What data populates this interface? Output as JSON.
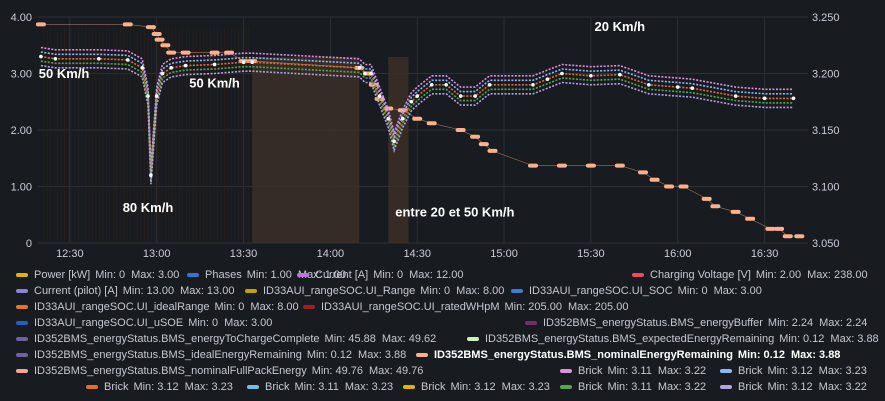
{
  "chart_data": {
    "type": "line",
    "x_ticks": [
      "12:30",
      "13:00",
      "13:30",
      "14:00",
      "14:30",
      "15:00",
      "15:30",
      "16:00",
      "16:30"
    ],
    "y_left_ticks": [
      "4.00",
      "3.00",
      "2.00",
      "1.00",
      "0"
    ],
    "y_right_ticks": [
      "3.250",
      "3.200",
      "3.150",
      "3.100",
      "3.050"
    ],
    "y_left_range": [
      0,
      4
    ],
    "y_right_range": [
      3.05,
      3.25
    ],
    "grid": true,
    "legend_position": "bottom",
    "annotations": [
      {
        "text": "50 Km/h",
        "time": "12:28",
        "value": 2.92
      },
      {
        "text": "50 Km/h",
        "time": "13:20",
        "value": 2.75
      },
      {
        "text": "80 Km/h",
        "time": "12:57",
        "value": 0.55
      },
      {
        "text": "entre 20 et 50 Km/h",
        "time": "14:43",
        "value": 0.47
      },
      {
        "text": "20 Km/h",
        "time": "15:40",
        "value": 3.75
      }
    ],
    "series": [
      {
        "name": "ID352BMS_energyStatus.BMS_nominalEnergyRemaining",
        "axis": "left",
        "color": "#fdb08b",
        "points": [
          [
            "12:20",
            3.87
          ],
          [
            "12:50",
            3.87
          ],
          [
            "12:58",
            3.82
          ],
          [
            "13:00",
            3.7
          ],
          [
            "13:01",
            3.6
          ],
          [
            "13:03",
            3.5
          ],
          [
            "13:05",
            3.37
          ],
          [
            "13:10",
            3.37
          ],
          [
            "13:20",
            3.37
          ],
          [
            "13:25",
            3.37
          ],
          [
            "13:30",
            3.22
          ],
          [
            "13:33",
            3.22
          ],
          [
            "14:10",
            3.1
          ],
          [
            "14:13",
            3.0
          ],
          [
            "14:15",
            2.8
          ],
          [
            "14:17",
            2.55
          ],
          [
            "14:20",
            2.38
          ],
          [
            "14:25",
            2.35
          ],
          [
            "14:30",
            2.2
          ],
          [
            "14:35",
            2.12
          ],
          [
            "14:45",
            2.0
          ],
          [
            "14:50",
            1.88
          ],
          [
            "14:53",
            1.75
          ],
          [
            "14:56",
            1.63
          ],
          [
            "15:10",
            1.37
          ],
          [
            "15:20",
            1.37
          ],
          [
            "15:30",
            1.37
          ],
          [
            "15:40",
            1.37
          ],
          [
            "15:48",
            1.25
          ],
          [
            "15:52",
            1.12
          ],
          [
            "15:57",
            1.0
          ],
          [
            "16:02",
            1.0
          ],
          [
            "16:10",
            0.78
          ],
          [
            "16:13",
            0.65
          ],
          [
            "16:20",
            0.55
          ],
          [
            "16:25",
            0.43
          ],
          [
            "16:32",
            0.25
          ],
          [
            "16:35",
            0.25
          ],
          [
            "16:38",
            0.12
          ],
          [
            "16:42",
            0.12
          ]
        ]
      },
      {
        "name": "Brick",
        "axis": "right",
        "color": "#f2495c",
        "points": [
          [
            "12:20",
            3.215
          ],
          [
            "12:25",
            3.213
          ],
          [
            "12:40",
            3.213
          ],
          [
            "12:50",
            3.212
          ],
          [
            "12:55",
            3.205
          ],
          [
            "12:57",
            3.18
          ],
          [
            "12:58",
            3.11
          ],
          [
            "13:00",
            3.18
          ],
          [
            "13:02",
            3.2
          ],
          [
            "13:05",
            3.205
          ],
          [
            "13:10",
            3.207
          ],
          [
            "13:20",
            3.208
          ],
          [
            "13:30",
            3.21
          ],
          [
            "13:33",
            3.21
          ],
          [
            "14:10",
            3.205
          ],
          [
            "14:12",
            3.2
          ],
          [
            "14:14",
            3.2
          ],
          [
            "14:17",
            3.18
          ],
          [
            "14:20",
            3.16
          ],
          [
            "14:22",
            3.14
          ],
          [
            "14:25",
            3.16
          ],
          [
            "14:28",
            3.175
          ],
          [
            "14:30",
            3.18
          ],
          [
            "14:35",
            3.19
          ],
          [
            "14:40",
            3.19
          ],
          [
            "14:45",
            3.18
          ],
          [
            "14:50",
            3.18
          ],
          [
            "14:55",
            3.19
          ],
          [
            "15:10",
            3.19
          ],
          [
            "15:15",
            3.195
          ],
          [
            "15:20",
            3.2
          ],
          [
            "15:30",
            3.198
          ],
          [
            "15:40",
            3.199
          ],
          [
            "15:50",
            3.19
          ],
          [
            "16:00",
            3.188
          ],
          [
            "16:05",
            3.187
          ],
          [
            "16:20",
            3.18
          ],
          [
            "16:30",
            3.178
          ],
          [
            "16:40",
            3.178
          ]
        ]
      },
      {
        "name": "Power [kW]",
        "axis": "left",
        "color": "#c7a03b",
        "points": []
      },
      {
        "name": "Current [A]",
        "axis": "left",
        "color": "#b877d9",
        "points": []
      }
    ]
  },
  "legend": [
    {
      "color": "#e0b400",
      "name": "Power [kW]",
      "min": "0",
      "max": "3.00"
    },
    {
      "color": "#3274d9",
      "name": "Phases",
      "min": "1.00",
      "max": "1.00"
    },
    {
      "color": "#b877d9",
      "name": "Current [A]",
      "min": "0",
      "max": "12.00"
    },
    {
      "color": "#f2495c",
      "name": "Charging Voltage [V]",
      "min": "2.00",
      "max": "238.00"
    },
    {
      "color": "#8f7fd9",
      "name": "Current (pilot) [A]",
      "min": "13.00",
      "max": "13.00"
    },
    {
      "color": "#c4a000",
      "name": "ID33AUI_rangeSOC.UI_Range",
      "min": "0",
      "max": "8.00"
    },
    {
      "color": "#3c7fcd",
      "name": "ID33AUI_rangeSOC.UI_SOC",
      "min": "0",
      "max": "3.00"
    },
    {
      "color": "#e0752d",
      "name": "ID33AUI_rangeSOC.UI_idealRange",
      "min": "0",
      "max": "8.00"
    },
    {
      "color": "#a01f1f",
      "name": "ID33AUI_rangeSOC.UI_ratedWHpM",
      "min": "205.00",
      "max": "205.00"
    },
    {
      "color": "#1f60c4",
      "name": "ID33AUI_rangeSOC.UI_uSOE",
      "min": "0",
      "max": "3.00"
    },
    {
      "color": "#7b2a6b",
      "name": "ID352BMS_energyStatus.BMS_energyBuffer",
      "min": "2.24",
      "max": "2.24"
    },
    {
      "color": "#6c5fa8",
      "name": "ID352BMS_energyStatus.BMS_energyToChargeComplete",
      "min": "45.88",
      "max": "49.62"
    },
    {
      "color": "#c8f2c2",
      "name": "ID352BMS_energyStatus.BMS_expectedEnergyRemaining",
      "min": "0.12",
      "max": "3.88"
    },
    {
      "color": "#6e5fa8",
      "name": "ID352BMS_energyStatus.BMS_idealEnergyRemaining",
      "min": "0.12",
      "max": "3.88"
    },
    {
      "color": "#fdb08b",
      "name": "ID352BMS_energyStatus.BMS_nominalEnergyRemaining",
      "min": "0.12",
      "max": "3.88",
      "bold": true
    },
    {
      "color": "#f9a0a0",
      "name": "ID352BMS_energyStatus.BMS_nominalFullPackEnergy",
      "min": "49.76",
      "max": "49.76"
    },
    {
      "color": "#e08ee0",
      "name": "Brick",
      "min": "3.11",
      "max": "3.22"
    },
    {
      "color": "#8ab8ff",
      "name": "Brick",
      "min": "3.12",
      "max": "3.23"
    },
    {
      "color": "#e06e2d",
      "name": "Brick",
      "min": "3.12",
      "max": "3.23"
    },
    {
      "color": "#73bfe8",
      "name": "Brick",
      "min": "3.11",
      "max": "3.23"
    },
    {
      "color": "#e0b400",
      "name": "Brick",
      "min": "3.12",
      "max": "3.23"
    },
    {
      "color": "#56a64b",
      "name": "Brick",
      "min": "3.11",
      "max": "3.22"
    },
    {
      "color": "#b4a0e8",
      "name": "Brick",
      "min": "3.12",
      "max": "3.22"
    }
  ],
  "labels": {
    "min": "Min:",
    "max": "Max:"
  }
}
